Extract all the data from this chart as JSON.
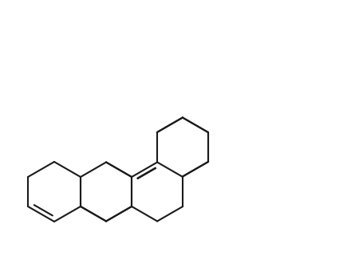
{
  "bg_color": "#ffffff",
  "line_color": "#1a1a1a",
  "label_color_black": "#1a1a1a",
  "label_color_brown": "#8B6914",
  "figsize": [
    4.4,
    3.45
  ],
  "dpi": 100
}
